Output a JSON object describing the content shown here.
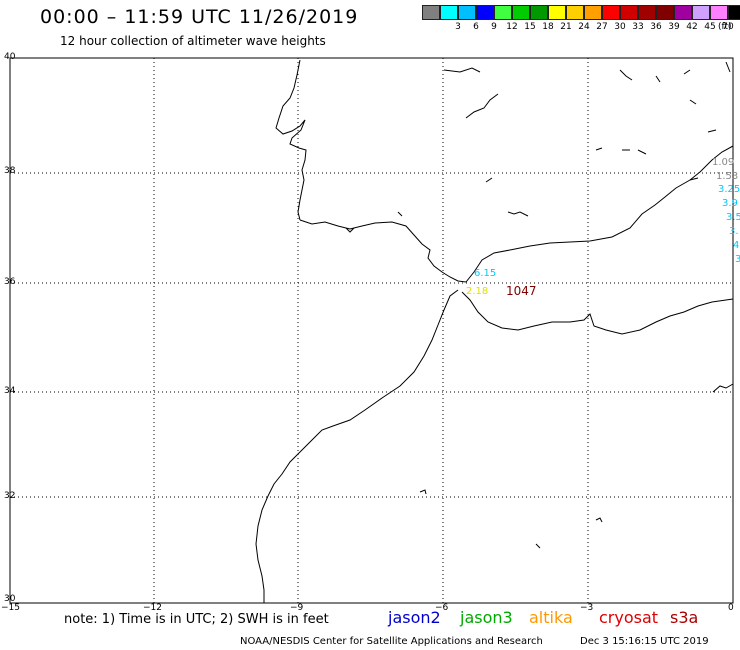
{
  "header": {
    "title": "00:00 – 11:59 UTC 11/26/2019",
    "subtitle": "12 hour collection of altimeter wave heights"
  },
  "legend": {
    "unit": "(ft)",
    "items": [
      {
        "label": "",
        "color": "#808080"
      },
      {
        "label": "3",
        "color": "#00ffff"
      },
      {
        "label": "6",
        "color": "#00bfff"
      },
      {
        "label": "9",
        "color": "#0000ff"
      },
      {
        "label": "12",
        "color": "#40ff40"
      },
      {
        "label": "15",
        "color": "#00cc00"
      },
      {
        "label": "18",
        "color": "#009900"
      },
      {
        "label": "21",
        "color": "#ffff00"
      },
      {
        "label": "24",
        "color": "#ffd000"
      },
      {
        "label": "27",
        "color": "#ffa000"
      },
      {
        "label": "30",
        "color": "#ff0000"
      },
      {
        "label": "33",
        "color": "#d00000"
      },
      {
        "label": "36",
        "color": "#a00000"
      },
      {
        "label": "39",
        "color": "#800000"
      },
      {
        "label": "42",
        "color": "#a000a0"
      },
      {
        "label": "45",
        "color": "#d0a0ff"
      },
      {
        "label": "70",
        "color": "#ff80ff"
      }
    ],
    "top_color": "#000000"
  },
  "axes": {
    "lat_ticks": [
      "40",
      "38",
      "36",
      "34",
      "32",
      "30"
    ],
    "lon_ticks": [
      "−15",
      "−12",
      "−9",
      "−6",
      "−3",
      "0"
    ]
  },
  "wave_labels": [
    {
      "text": "1.09",
      "color": "#888888"
    },
    {
      "text": "1.53",
      "color": "#888888"
    },
    {
      "text": "3.25",
      "color": "#00c8ff"
    },
    {
      "text": "3.9",
      "color": "#00c8ff"
    },
    {
      "text": "3.5",
      "color": "#00c8ff"
    },
    {
      "text": "3.",
      "color": "#00c8ff"
    },
    {
      "text": "4",
      "color": "#00c8ff"
    },
    {
      "text": "3",
      "color": "#00c8ff"
    },
    {
      "text": "6.15",
      "color": "#00c8ff"
    },
    {
      "text": "2.18",
      "color": "#e0e000"
    },
    {
      "text": "1047",
      "color": "#800000"
    }
  ],
  "footer": {
    "note": "note: 1) Time is in UTC; 2) SWH is in feet",
    "satellites": [
      {
        "name": "jason2",
        "color": "#0000cc"
      },
      {
        "name": "jason3",
        "color": "#00aa00"
      },
      {
        "name": "altika",
        "color": "#ff9900"
      },
      {
        "name": "cryosat",
        "color": "#dd0000"
      },
      {
        "name": "s3a",
        "color": "#aa0000"
      }
    ],
    "credit": "NOAA/NESDIS Center for Satellite Applications and Research",
    "timestamp": "Dec  3 15:16:15 UTC 2019"
  }
}
